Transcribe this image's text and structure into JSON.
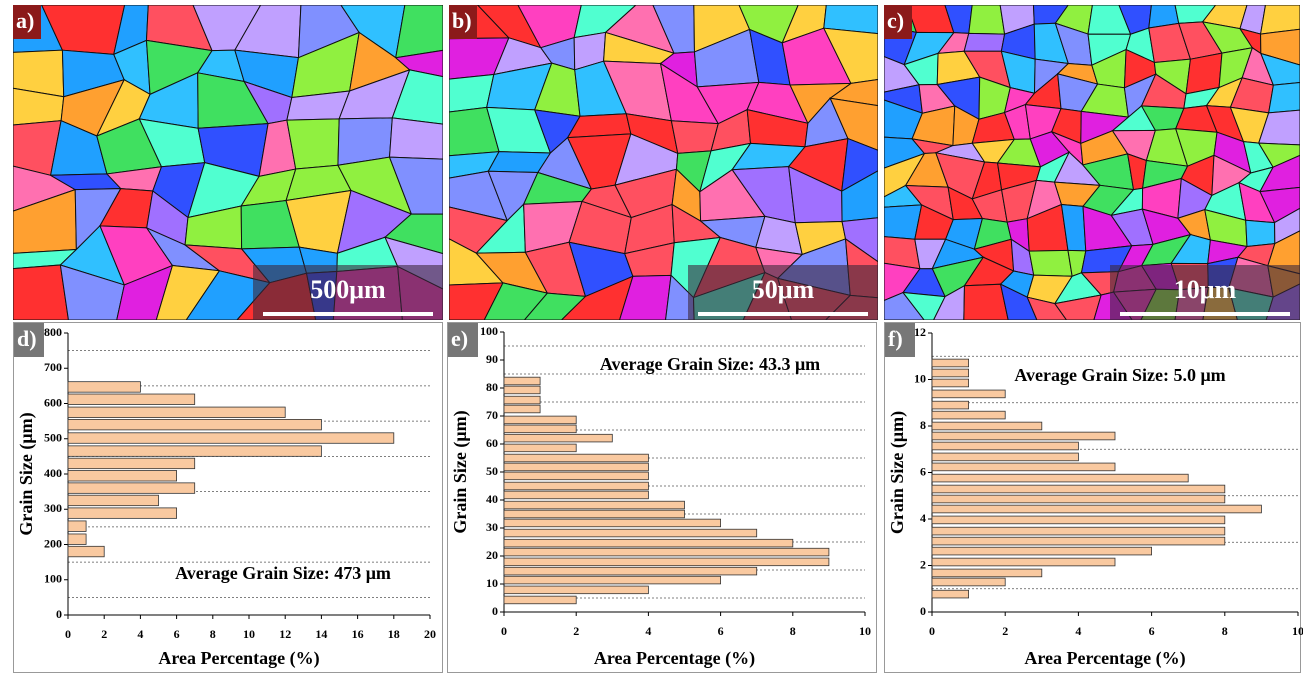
{
  "images": [
    {
      "label": "a)",
      "scale_bar": "500μm"
    },
    {
      "label": "b)",
      "scale_bar": "50μm"
    },
    {
      "label": "c)",
      "scale_bar": "10μm"
    }
  ],
  "chart_data": [
    {
      "type": "barh",
      "panel_label": "d)",
      "annotation": "Average Grain Size: 473 μm",
      "xlabel": "Area Percentage (%)",
      "ylabel": "Grain Size (μm)",
      "color": "#f9c9a0",
      "y": [
        180,
        215,
        252,
        289,
        325,
        360,
        395,
        430,
        465,
        502,
        540,
        575,
        612,
        647
      ],
      "values": [
        2,
        1,
        1,
        6,
        5,
        7,
        6,
        7,
        14,
        18,
        14,
        12,
        7,
        4
      ],
      "xlim": [
        0,
        20
      ],
      "xticks": [
        0,
        2,
        4,
        6,
        8,
        10,
        12,
        14,
        16,
        18,
        20
      ],
      "ylim": [
        0,
        800
      ],
      "yticks": [
        0,
        100,
        200,
        300,
        400,
        500,
        600,
        700,
        800
      ],
      "grid_lines": [
        50,
        150,
        250,
        350,
        450,
        550,
        650,
        750
      ]
    },
    {
      "type": "barh",
      "panel_label": "e)",
      "annotation": "Average Grain Size: 43.3 μm",
      "xlabel": "Area Percentage (%)",
      "ylabel": "Grain Size (μm)",
      "color": "#f9c9a0",
      "y": [
        4.3,
        7.9,
        11.4,
        14.6,
        17.9,
        21.4,
        24.6,
        28.2,
        31.8,
        35,
        38.2,
        41.8,
        45,
        48.6,
        51.8,
        55,
        58.6,
        62.1,
        65.4,
        68.6,
        72.5,
        75.7,
        79.3,
        82.5
      ],
      "values": [
        2,
        4,
        6,
        7,
        9,
        9,
        8,
        7,
        6,
        5,
        5,
        4,
        4,
        4,
        4,
        4,
        2,
        3,
        2,
        2,
        1,
        1,
        1,
        1
      ],
      "xlim": [
        0,
        10
      ],
      "xticks": [
        0,
        2,
        4,
        6,
        8,
        10
      ],
      "ylim": [
        0,
        100
      ],
      "yticks": [
        0,
        10,
        20,
        30,
        40,
        50,
        60,
        70,
        80,
        90,
        100
      ],
      "grid_lines": [
        5,
        15,
        25,
        35,
        45,
        55,
        65,
        75,
        85,
        95
      ]
    },
    {
      "type": "barh",
      "panel_label": "f)",
      "annotation": "Average Grain Size: 5.0 μm",
      "xlabel": "Area Percentage (%)",
      "ylabel": "Grain Size (μm)",
      "color": "#f9c9a0",
      "y": [
        0.77,
        1.29,
        1.68,
        2.15,
        2.62,
        3.05,
        3.48,
        3.96,
        4.43,
        4.86,
        5.29,
        5.76,
        6.24,
        6.67,
        7.14,
        7.57,
        8,
        8.47,
        8.9,
        9.38,
        9.85,
        10.28,
        10.71
      ],
      "values": [
        1,
        2,
        3,
        5,
        6,
        8,
        8,
        8,
        9,
        8,
        8,
        7,
        5,
        4,
        4,
        5,
        3,
        2,
        1,
        2,
        1,
        1,
        1
      ],
      "xlim": [
        0,
        10
      ],
      "xticks": [
        0,
        2,
        4,
        6,
        8,
        10
      ],
      "ylim": [
        0,
        12
      ],
      "yticks": [
        0,
        2,
        4,
        6,
        8,
        10,
        12
      ],
      "grid_lines": [
        1,
        3,
        5,
        7,
        9,
        11
      ]
    }
  ]
}
